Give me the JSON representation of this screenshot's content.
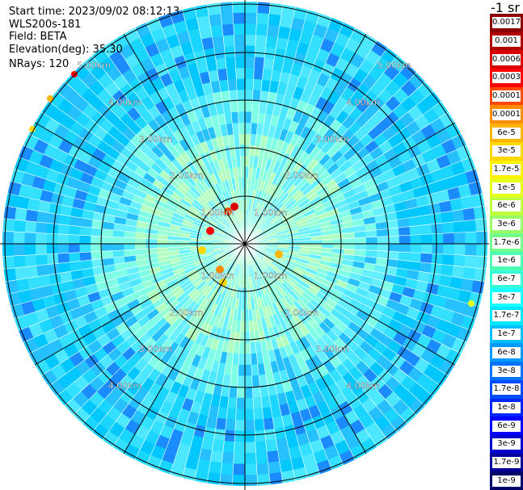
{
  "header": {
    "start_time": "Start time: 2023/09/02 08:12:13",
    "instrument": "WLS200s-181",
    "field": "Field: BETA",
    "elevation": "Elevation(deg): 35.30",
    "nrays": "NRays: 120"
  },
  "colorbar": {
    "unit": "-1 sr",
    "labels": [
      "0.0017",
      "0.001",
      "0.0006",
      "0.0003",
      "0.00017",
      "0.0001",
      "6e-5",
      "3e-5",
      "1.7e-5",
      "1e-5",
      "6e-6",
      "3e-6",
      "1.7e-6",
      "1e-6",
      "6e-7",
      "3e-7",
      "1.7e-7",
      "1e-7",
      "6e-8",
      "3e-8",
      "1.7e-8",
      "1e-8",
      "6e-9",
      "3e-9",
      "1.7e-9",
      "1e-9"
    ],
    "colors": [
      "#8b0000",
      "#b00000",
      "#d80000",
      "#ff0000",
      "#ff4800",
      "#ff8c00",
      "#ffb400",
      "#ffd700",
      "#fff200",
      "#e6ff1a",
      "#bfff40",
      "#99ff66",
      "#73ff8c",
      "#4dffb3",
      "#33ffd9",
      "#1affff",
      "#00e6ff",
      "#00bfff",
      "#0099ff",
      "#0073ff",
      "#004dff",
      "#0026ff",
      "#0000ff",
      "#0000cc",
      "#000099",
      "#00006b"
    ]
  },
  "rings": {
    "labels": [
      "1.00km",
      "2.00km",
      "3.00km",
      "4.00km",
      "5.00km"
    ]
  },
  "plot": {
    "nrays": 120,
    "background_colors": [
      "#00c8ff",
      "#1ad6ff",
      "#33e0ff",
      "#4de8ff",
      "#26c0ff",
      "#66f0ff",
      "#80ffe6",
      "#99ffd4",
      "#b3ffc0"
    ],
    "grid_color": "#000000",
    "ray_color": "#ffffff"
  }
}
